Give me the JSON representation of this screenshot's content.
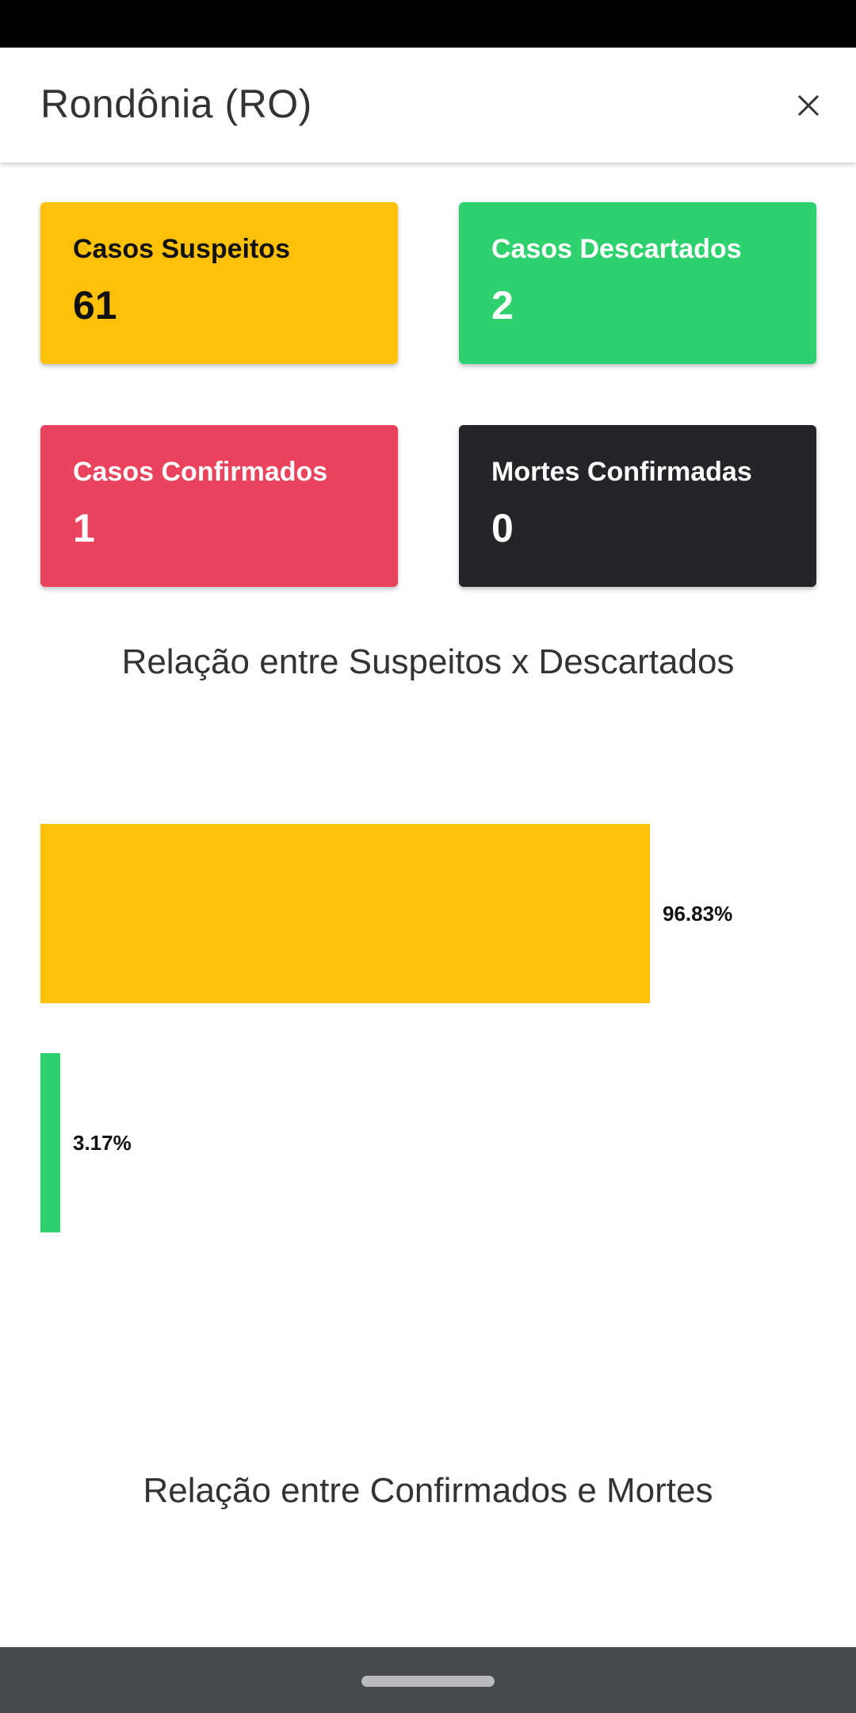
{
  "header": {
    "title": "Rondônia (RO)"
  },
  "cards": [
    {
      "label": "Casos Suspeitos",
      "value": "61",
      "bg": "#ffc107",
      "fg": "#111111"
    },
    {
      "label": "Casos Descartados",
      "value": "2",
      "bg": "#2fd16f",
      "fg": "#ffffff"
    },
    {
      "label": "Casos Confirmados",
      "value": "1",
      "bg": "#ea435d",
      "fg": "#ffffff"
    },
    {
      "label": "Mortes Confirmadas",
      "value": "0",
      "bg": "#242529",
      "fg": "#ffffff"
    }
  ],
  "charts": {
    "suspeitos_descartados_title": "Relação entre Suspeitos x Descartados",
    "confirmados_mortes_title": "Relação entre Confirmados e Mortes"
  },
  "chart_data": {
    "type": "bar",
    "orientation": "horizontal",
    "title": "Relação entre Suspeitos x Descartados",
    "categories": [
      "Casos Suspeitos",
      "Casos Descartados"
    ],
    "values": [
      96.83,
      3.17
    ],
    "value_labels": [
      "96.83%",
      "3.17%"
    ],
    "colors": [
      "#ffc107",
      "#2fd16f"
    ],
    "xlim": [
      0,
      100
    ],
    "grid": false
  },
  "icons": {
    "close": "close-icon"
  }
}
